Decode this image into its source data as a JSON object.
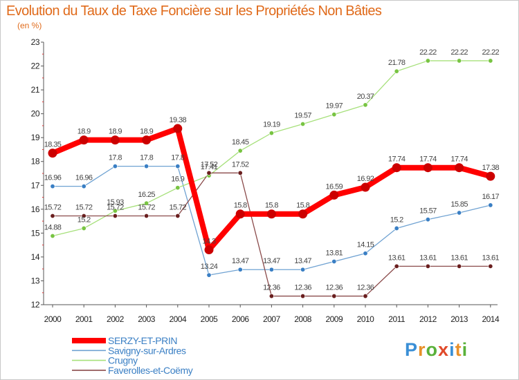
{
  "chart_data": {
    "type": "line",
    "title": "Evolution du Taux de Taxe Foncière sur les Propriétés Non Bâties",
    "ylabel": "(en %)",
    "xlabel": "",
    "ylim": [
      12,
      23
    ],
    "yticks": [
      12,
      13,
      14,
      15,
      16,
      17,
      18,
      19,
      20,
      21,
      22,
      23
    ],
    "grid": false,
    "x": [
      2000,
      2001,
      2002,
      2003,
      2004,
      2005,
      2006,
      2007,
      2008,
      2009,
      2010,
      2011,
      2012,
      2013,
      2014
    ],
    "series": [
      {
        "name": "SERZY-ET-PRIN",
        "color": "#ff0000",
        "marker": "#cc0000",
        "emphasis": true,
        "values": [
          18.35,
          18.9,
          18.9,
          18.9,
          19.38,
          14.3,
          15.8,
          15.8,
          15.8,
          16.59,
          16.92,
          17.74,
          17.74,
          17.74,
          17.38
        ],
        "labels": [
          "18.35",
          "18.9",
          "18.9",
          "18.9",
          "19.38",
          "14.3",
          "15.8",
          "15.8",
          "15.8",
          "16.59",
          "16.92",
          "17.74",
          "17.74",
          "17.74",
          "17.38"
        ]
      },
      {
        "name": "Savigny-sur-Ardres",
        "color": "#6fa2d2",
        "marker": "#3a7fc4",
        "emphasis": false,
        "values": [
          16.96,
          16.96,
          17.8,
          17.8,
          17.8,
          13.24,
          13.47,
          13.47,
          13.47,
          13.81,
          14.15,
          15.2,
          15.57,
          15.85,
          16.17
        ],
        "labels": [
          "16.96",
          "16.96",
          "17.8",
          "17.8",
          "17.8",
          "13.24",
          "13.47",
          "13.47",
          "13.47",
          "13.81",
          "14.15",
          "15.2",
          "15.57",
          "15.85",
          "16.17"
        ]
      },
      {
        "name": "Crugny",
        "color": "#a6e07a",
        "marker": "#78c442",
        "emphasis": false,
        "values": [
          14.88,
          15.2,
          15.93,
          16.25,
          16.9,
          17.41,
          18.45,
          19.19,
          19.57,
          19.97,
          20.37,
          21.78,
          22.22,
          22.22,
          22.22
        ],
        "labels": [
          "14.88",
          "15.2",
          "15.93",
          "16.25",
          "16.9",
          "17.41",
          "18.45",
          "19.19",
          "19.57",
          "19.97",
          "20.37",
          "21.78",
          "22.22",
          "22.22",
          "22.22"
        ]
      },
      {
        "name": "Faverolles-et-Coëmy",
        "color": "#8a4a4a",
        "marker": "#6a1f1f",
        "emphasis": false,
        "values": [
          15.72,
          15.72,
          15.72,
          15.72,
          15.72,
          17.52,
          17.52,
          12.36,
          12.36,
          12.36,
          12.36,
          13.61,
          13.61,
          13.61,
          13.61
        ],
        "labels": [
          "15.72",
          "15.72",
          "15.72",
          "15.72",
          "15.72",
          "17.52",
          "17.52",
          "12.36",
          "12.36",
          "12.36",
          "12.36",
          "13.61",
          "13.61",
          "13.61",
          "13.61"
        ]
      }
    ]
  },
  "logo": {
    "letters": [
      "P",
      "r",
      "o",
      "x",
      "i",
      "t",
      "i"
    ],
    "colors": [
      "#3a8fd6",
      "#e8902a",
      "#5ab13a",
      "#e04a2a",
      "#3a8fd6",
      "#e8902a",
      "#5ab13a"
    ]
  }
}
